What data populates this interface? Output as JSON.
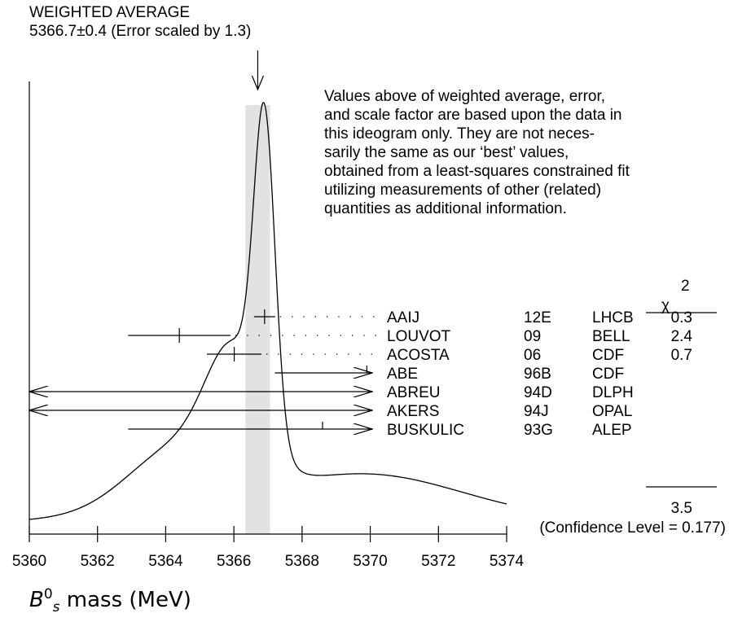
{
  "chart_data": {
    "type": "ideogram",
    "title": "WEIGHTED AVERAGE",
    "average": {
      "value": 5366.7,
      "error": 0.4,
      "scale_factor": 1.3,
      "label": "5366.7±0.4 (Error scaled by 1.3)"
    },
    "note_lines": [
      "Values above of weighted average, error,",
      "and scale factor are based upon the data in",
      "this ideogram only.  They are not neces-",
      "sarily the same as our ‘best’ values,",
      "obtained from a least-squares constrained fit",
      "utilizing measurements of other (related)",
      "quantities as additional information."
    ],
    "xlabel": {
      "symbol": "B",
      "superscript": "0",
      "subscript": "s",
      "text": "mass (MeV)"
    },
    "xlim": [
      5360,
      5374
    ],
    "xticks": [
      "5360",
      "5362",
      "5364",
      "5366",
      "5368",
      "5370",
      "5372",
      "5374"
    ],
    "chi2_header": "χ",
    "chi2_power": "2",
    "chi2_total": "3.5",
    "confidence_level": "(Confidence Level = 0.177)",
    "measurements": [
      {
        "author": "AAIJ",
        "year": "12E",
        "experiment": "LHCB",
        "chi2": "0.3",
        "value": 5366.9,
        "error_lo": 0.31,
        "error_hi": 0.31,
        "kind": "point"
      },
      {
        "author": "LOUVOT",
        "year": "09",
        "experiment": "BELL",
        "chi2": "2.4",
        "value": 5364.4,
        "error_lo": 1.5,
        "error_hi": 1.5,
        "kind": "point"
      },
      {
        "author": "ACOSTA",
        "year": "06",
        "experiment": "CDF",
        "chi2": "0.7",
        "value": 5366.01,
        "error_lo": 0.8,
        "error_hi": 0.8,
        "kind": "point"
      },
      {
        "author": "ABE",
        "year": "96B",
        "experiment": "CDF",
        "chi2": "",
        "value": 5369.9,
        "error_lo": 2.7,
        "error_hi": 2.7,
        "kind": "offscale"
      },
      {
        "author": "ABREU",
        "year": "94D",
        "experiment": "DLPH",
        "chi2": "",
        "value": 5374.0,
        "error_lo": 20,
        "error_hi": 20,
        "kind": "offscale"
      },
      {
        "author": "AKERS",
        "year": "94J",
        "experiment": "OPAL",
        "chi2": "",
        "value": 5359.0,
        "error_lo": 20,
        "error_hi": 20,
        "kind": "offscale"
      },
      {
        "author": "BUSKULIC",
        "year": "93G",
        "experiment": "ALEP",
        "chi2": "",
        "value": 5368.6,
        "error_lo": 5.7,
        "error_hi": 5.7,
        "kind": "offscale"
      }
    ]
  }
}
